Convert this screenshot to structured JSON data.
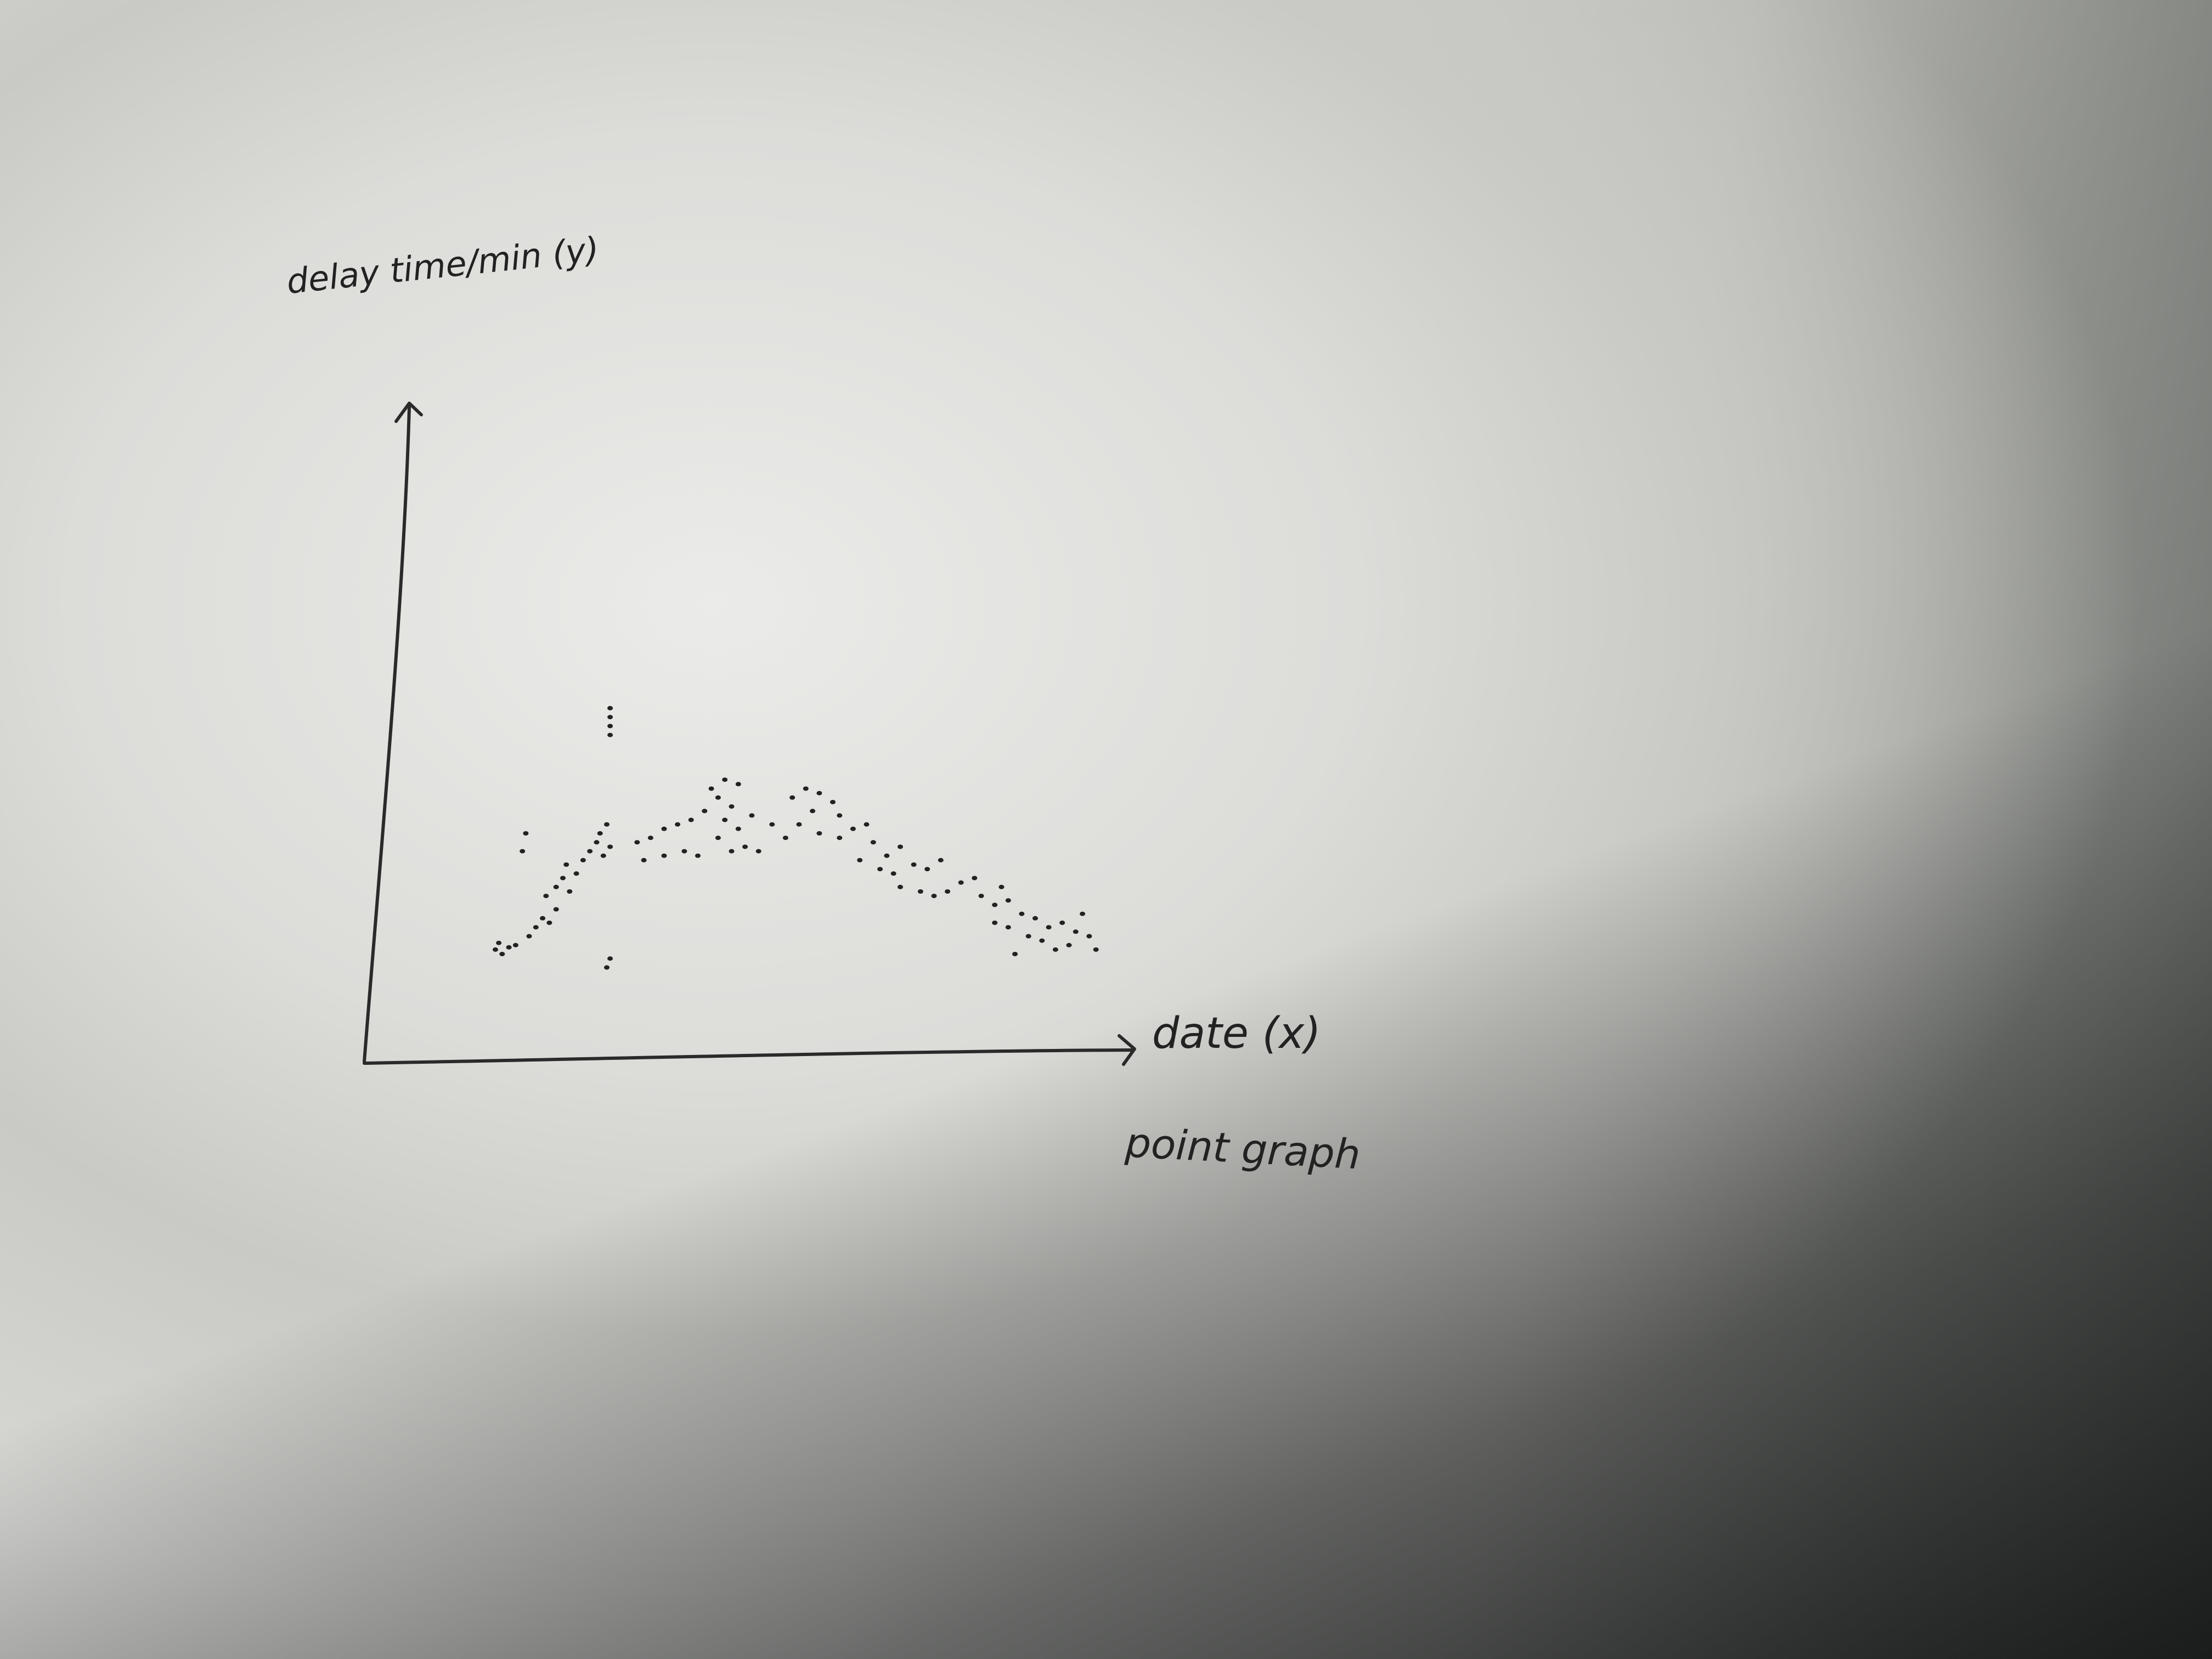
{
  "chart_data": {
    "type": "scatter",
    "title": "",
    "xlabel": "date (x)",
    "ylabel": "delay time/min (y)",
    "caption": "point graph",
    "xlim": [
      0,
      100
    ],
    "ylim": [
      0,
      100
    ],
    "grid": false,
    "legend": "none",
    "color": "#222222",
    "series": [
      {
        "values": [
          {
            "x": 10,
            "y": 14
          },
          {
            "x": 11,
            "y": 13
          },
          {
            "x": 10.5,
            "y": 15.5
          },
          {
            "x": 12,
            "y": 14.5
          },
          {
            "x": 13,
            "y": 15
          },
          {
            "x": 15,
            "y": 17
          },
          {
            "x": 16,
            "y": 19
          },
          {
            "x": 17,
            "y": 21
          },
          {
            "x": 18,
            "y": 20
          },
          {
            "x": 19,
            "y": 23
          },
          {
            "x": 17.5,
            "y": 26
          },
          {
            "x": 19,
            "y": 28
          },
          {
            "x": 20,
            "y": 30
          },
          {
            "x": 21,
            "y": 27
          },
          {
            "x": 22,
            "y": 31
          },
          {
            "x": 20.5,
            "y": 33
          },
          {
            "x": 23,
            "y": 34
          },
          {
            "x": 24,
            "y": 36
          },
          {
            "x": 25,
            "y": 38
          },
          {
            "x": 26,
            "y": 35
          },
          {
            "x": 25.5,
            "y": 40
          },
          {
            "x": 27,
            "y": 37
          },
          {
            "x": 26.5,
            "y": 42
          },
          {
            "x": 14,
            "y": 36
          },
          {
            "x": 14.5,
            "y": 40
          },
          {
            "x": 27,
            "y": 62
          },
          {
            "x": 27,
            "y": 64
          },
          {
            "x": 27,
            "y": 66
          },
          {
            "x": 27,
            "y": 68
          },
          {
            "x": 26.5,
            "y": 10
          },
          {
            "x": 27,
            "y": 12
          },
          {
            "x": 31,
            "y": 38
          },
          {
            "x": 33,
            "y": 39
          },
          {
            "x": 35,
            "y": 41
          },
          {
            "x": 37,
            "y": 42
          },
          {
            "x": 32,
            "y": 34
          },
          {
            "x": 35,
            "y": 35
          },
          {
            "x": 38,
            "y": 36
          },
          {
            "x": 40,
            "y": 35
          },
          {
            "x": 39,
            "y": 43
          },
          {
            "x": 41,
            "y": 45
          },
          {
            "x": 42,
            "y": 50
          },
          {
            "x": 44,
            "y": 52
          },
          {
            "x": 46,
            "y": 51
          },
          {
            "x": 43,
            "y": 48
          },
          {
            "x": 45,
            "y": 46
          },
          {
            "x": 44,
            "y": 43
          },
          {
            "x": 46,
            "y": 41
          },
          {
            "x": 48,
            "y": 44
          },
          {
            "x": 47,
            "y": 37
          },
          {
            "x": 45,
            "y": 36
          },
          {
            "x": 43,
            "y": 39
          },
          {
            "x": 49,
            "y": 36
          },
          {
            "x": 51,
            "y": 42
          },
          {
            "x": 54,
            "y": 48
          },
          {
            "x": 56,
            "y": 50
          },
          {
            "x": 58,
            "y": 49
          },
          {
            "x": 60,
            "y": 47
          },
          {
            "x": 61,
            "y": 44
          },
          {
            "x": 57,
            "y": 45
          },
          {
            "x": 55,
            "y": 42
          },
          {
            "x": 58,
            "y": 40
          },
          {
            "x": 61,
            "y": 39
          },
          {
            "x": 63,
            "y": 41
          },
          {
            "x": 53,
            "y": 39
          },
          {
            "x": 65,
            "y": 42
          },
          {
            "x": 66,
            "y": 38
          },
          {
            "x": 64,
            "y": 34
          },
          {
            "x": 67,
            "y": 32
          },
          {
            "x": 68,
            "y": 35
          },
          {
            "x": 70,
            "y": 37
          },
          {
            "x": 69,
            "y": 31
          },
          {
            "x": 72,
            "y": 33
          },
          {
            "x": 74,
            "y": 32
          },
          {
            "x": 76,
            "y": 34
          },
          {
            "x": 70,
            "y": 28
          },
          {
            "x": 73,
            "y": 27
          },
          {
            "x": 75,
            "y": 26
          },
          {
            "x": 77,
            "y": 27
          },
          {
            "x": 79,
            "y": 29
          },
          {
            "x": 81,
            "y": 30
          },
          {
            "x": 82,
            "y": 26
          },
          {
            "x": 84,
            "y": 24
          },
          {
            "x": 86,
            "y": 25
          },
          {
            "x": 88,
            "y": 22
          },
          {
            "x": 90,
            "y": 21
          },
          {
            "x": 92,
            "y": 19
          },
          {
            "x": 94,
            "y": 20
          },
          {
            "x": 96,
            "y": 18
          },
          {
            "x": 95,
            "y": 15
          },
          {
            "x": 93,
            "y": 14
          },
          {
            "x": 91,
            "y": 16
          },
          {
            "x": 89,
            "y": 17
          },
          {
            "x": 86,
            "y": 19
          },
          {
            "x": 84,
            "y": 20
          },
          {
            "x": 97,
            "y": 22
          },
          {
            "x": 98,
            "y": 17
          },
          {
            "x": 99,
            "y": 14
          },
          {
            "x": 87,
            "y": 13
          },
          {
            "x": 85,
            "y": 28
          }
        ]
      }
    ]
  }
}
